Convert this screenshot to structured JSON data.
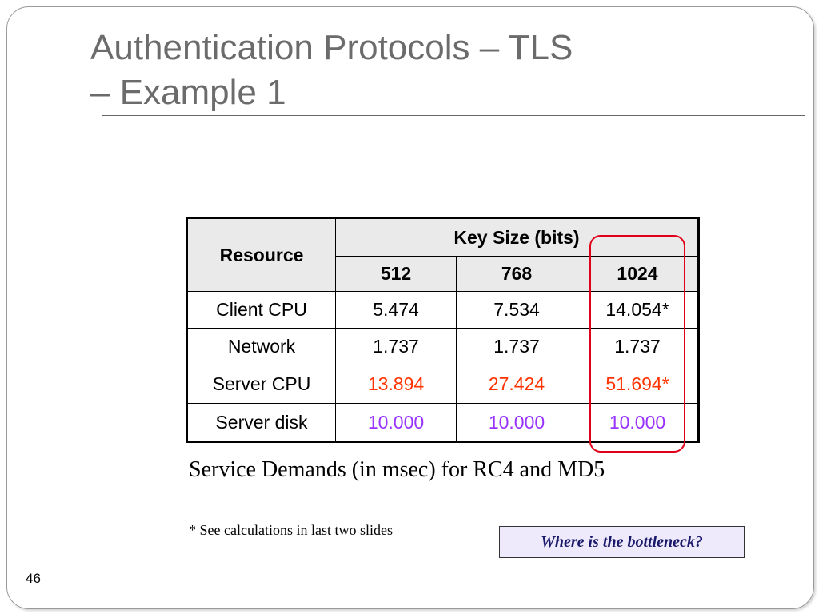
{
  "slide": {
    "title_line1": "Authentication Protocols – TLS",
    "title_line2": "– Example 1",
    "page_number": "46"
  },
  "table": {
    "resource_header": "Resource",
    "group_header": "Key Size (bits)",
    "columns": [
      "512",
      "768",
      "1024"
    ],
    "rows": [
      {
        "label": "Client CPU",
        "values": [
          "5.474",
          "7.534",
          "14.054*"
        ]
      },
      {
        "label": "Network",
        "values": [
          "1.737",
          "1.737",
          "1.737"
        ]
      },
      {
        "label": "Server CPU",
        "values": [
          "13.894",
          "27.424",
          "51.694*"
        ]
      },
      {
        "label": "Server disk",
        "values": [
          "10.000",
          "10.000",
          "10.000"
        ]
      }
    ]
  },
  "caption": "Service Demands (in msec) for RC4 and MD5",
  "footnote": "* See calculations in last two slides",
  "callout": "Where is the bottleneck?",
  "colors": {
    "title": "#6b6b6b",
    "server_cpu_values": "#ff3300",
    "server_disk_values": "#9933ff",
    "highlight_outline": "#e0001a",
    "callout_background": "#eee9fb"
  }
}
